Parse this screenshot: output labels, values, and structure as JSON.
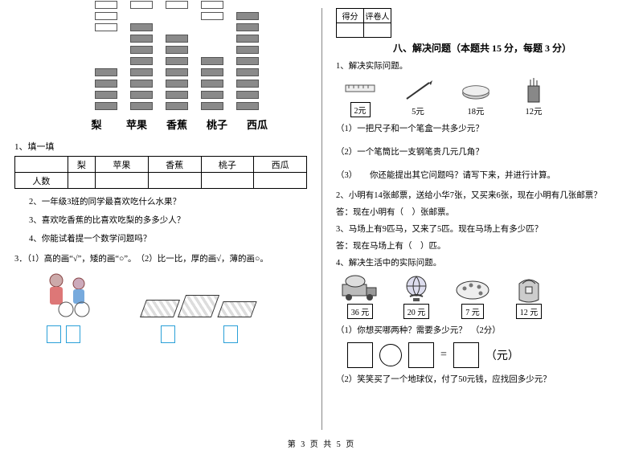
{
  "footer": "第 3 页  共 5 页",
  "left": {
    "chart": {
      "max": 10,
      "labels": [
        "梨",
        "苹果",
        "香蕉",
        "桃子",
        "西瓜"
      ],
      "values": [
        4,
        8,
        7,
        5,
        9
      ]
    },
    "fill_title": "1、填一填",
    "table": {
      "row_label": "人数",
      "cols": [
        "梨",
        "苹果",
        "香蕉",
        "桃子",
        "西瓜"
      ]
    },
    "q2": "2、一年级3班的同学最喜欢吃什么水果？",
    "q3": "3、喜欢吃香蕉的比喜欢吃梨的多多少人？",
    "q4": "4、你能试着提一个数学问题吗？",
    "q3line": "3．（1）高的画“√”，矮的画“○”。　（2）比一比，厚的画√，薄的画○。"
  },
  "right": {
    "score_labels": [
      "得分",
      "评卷人"
    ],
    "section_title": "八、解决问题（本题共 15 分，每题 3 分）",
    "q1": "1、解决实际问题。",
    "prices1": [
      "2元",
      "5元",
      "18元",
      "12元"
    ],
    "q1_1": "（1）一把尺子和一个笔盒一共多少元？",
    "q1_2": "（2）一个笔筒比一支钢笔贵几元几角？",
    "q1_3": "（3）　　你还能提出其它问题吗？请写下来，并进行计算。",
    "q2": "2、小明有14张邮票，送给小华7张，又买来6张，现在小明有几张邮票？",
    "q2a": "答：现在小明有（　）张邮票。",
    "q3": "3、马场上有9匹马，又来了5匹。现在马场上有多少匹？",
    "q3a": "答：现在马场上有（　）匹。",
    "q4": "4、解决生活中的实际问题。",
    "prices2": [
      "36 元",
      "20 元",
      "7 元",
      "12 元"
    ],
    "q4_1": "（1）你想买哪两种？需要多少元？　（2分）",
    "eq_unit": "（元）",
    "eq_eq": "=",
    "q4_2": "（2）笑笑买了一个地球仪，付了50元钱，应找回多少元？"
  }
}
